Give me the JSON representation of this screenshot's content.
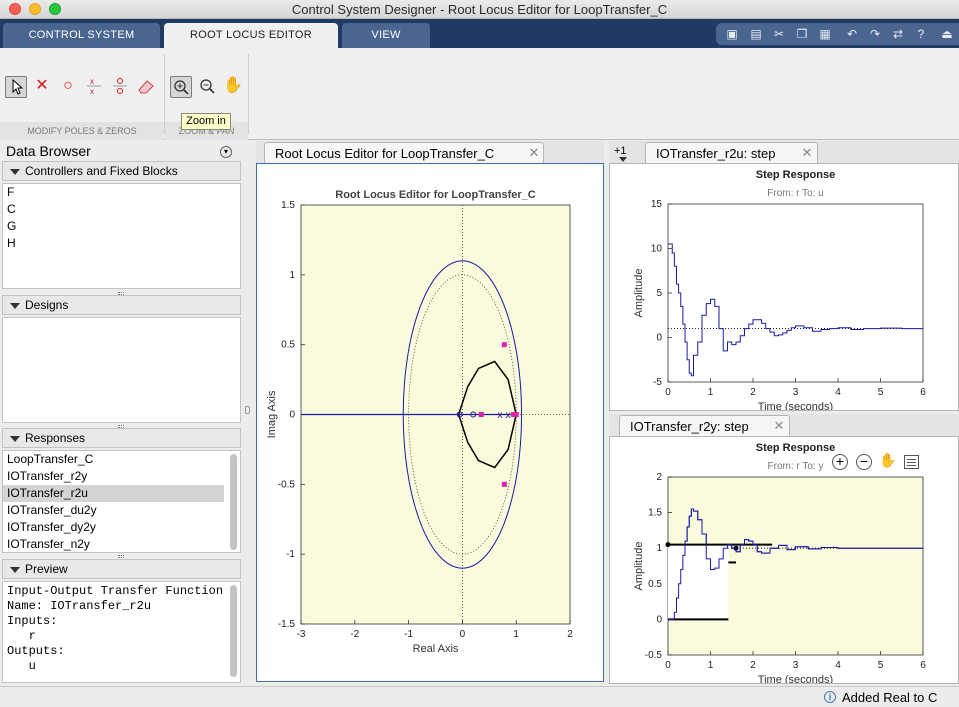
{
  "window": {
    "title": "Control System Designer - Root Locus Editor for LoopTransfer_C"
  },
  "tabs": {
    "control_system": "CONTROL SYSTEM",
    "root_locus_editor": "ROOT LOCUS EDITOR",
    "view": "VIEW",
    "active": "ROOT LOCUS EDITOR"
  },
  "ribbon": {
    "modify_label": "MODIFY POLES & ZEROS",
    "zoom_label": "ZOOM & PAN",
    "tooltip": "Zoom in",
    "tools": [
      "select-arrow-icon",
      "add-pole-icon",
      "add-zero-icon",
      "add-complex-pole-icon",
      "add-complex-zero-icon",
      "eraser-icon",
      "zoom-in-icon",
      "zoom-out-icon",
      "pan-hand-icon"
    ]
  },
  "data_browser": {
    "title": "Data Browser",
    "controllers": {
      "header": "Controllers and Fixed Blocks",
      "items": [
        "F",
        "C",
        "G",
        "H"
      ]
    },
    "designs": {
      "header": "Designs",
      "items": []
    },
    "responses": {
      "header": "Responses",
      "items": [
        "LoopTransfer_C",
        "IOTransfer_r2y",
        "IOTransfer_r2u",
        "IOTransfer_du2y",
        "IOTransfer_dy2y",
        "IOTransfer_n2y"
      ],
      "selected": "IOTransfer_r2u"
    },
    "preview": {
      "header": "Preview",
      "lines": [
        "Input-Output Transfer Function",
        "Name: IOTransfer_r2u",
        "Inputs:",
        "   r",
        "Outputs:",
        "   u"
      ]
    }
  },
  "root_locus": {
    "tab_label": "Root Locus Editor for LoopTransfer_C",
    "chart_data": {
      "type": "scatter",
      "title": "Root Locus Editor for LoopTransfer_C",
      "xlabel": "Real Axis",
      "ylabel": "Imag Axis",
      "xlim": [
        -3,
        2
      ],
      "ylim": [
        -1.5,
        1.5
      ],
      "xticks": [
        "-3",
        "-2",
        "-1",
        "0",
        "1",
        "2"
      ],
      "yticks": [
        "1.5",
        "1",
        "0.5",
        "0",
        "-0.5",
        "-1",
        "-1.5"
      ],
      "background": "#fafadc",
      "unit_circle_radius": 1.1,
      "closed_loop_poles": [
        [
          0.78,
          0.5
        ],
        [
          0.78,
          -0.5
        ],
        [
          0.35,
          0
        ],
        [
          0.95,
          0
        ],
        [
          1.0,
          0
        ]
      ],
      "open_loop_poles": [
        [
          0.7,
          0
        ],
        [
          0.85,
          0
        ]
      ],
      "open_loop_zeros": [
        [
          0.2,
          0
        ],
        [
          -0.05,
          0
        ]
      ]
    }
  },
  "r2u": {
    "tab_label": "IOTransfer_r2u: step",
    "plus_label": "+1",
    "chart_data": {
      "type": "line",
      "title": "Step Response",
      "subtitle": "From: r  To: u",
      "xlabel": "Time (seconds)",
      "ylabel": "Amplitude",
      "xlim": [
        0,
        6
      ],
      "ylim": [
        -5,
        15
      ],
      "xticks": [
        "0",
        "1",
        "2",
        "3",
        "4",
        "5",
        "6"
      ],
      "yticks": [
        "15",
        "10",
        "5",
        "0",
        "-5"
      ],
      "x": [
        0,
        0.1,
        0.15,
        0.2,
        0.25,
        0.3,
        0.35,
        0.4,
        0.45,
        0.5,
        0.55,
        0.6,
        0.7,
        0.8,
        0.9,
        1.0,
        1.1,
        1.2,
        1.3,
        1.4,
        1.5,
        1.6,
        1.7,
        1.8,
        1.9,
        2.0,
        2.1,
        2.2,
        2.3,
        2.4,
        2.5,
        2.6,
        2.7,
        2.8,
        2.9,
        3.0,
        3.2,
        3.4,
        3.6,
        3.8,
        4.0,
        4.3,
        4.6,
        5.0,
        5.5,
        6.0
      ],
      "y": [
        10.5,
        9.5,
        8,
        6,
        5,
        3.5,
        1.5,
        -0.5,
        -2.5,
        -4,
        -4.3,
        -2,
        -0.5,
        2.5,
        3.8,
        4.3,
        3.5,
        1,
        -1.5,
        -0.5,
        -0.8,
        -0.5,
        0.2,
        1,
        1.5,
        2,
        2,
        1.6,
        1,
        0.6,
        0.2,
        0.3,
        0.5,
        0.8,
        1.1,
        1.3,
        1.1,
        0.7,
        0.9,
        1.0,
        1.1,
        0.9,
        1.0,
        1.05,
        1.0,
        1.0
      ],
      "final_value": 1
    }
  },
  "r2y": {
    "tab_label": "IOTransfer_r2y: step",
    "chart_data": {
      "type": "line",
      "title": "Step Response",
      "subtitle": "From: r  To: y",
      "xlabel": "Time (seconds)",
      "ylabel": "Amplitude",
      "xlim": [
        0,
        6
      ],
      "ylim": [
        -0.5,
        2
      ],
      "xticks": [
        "0",
        "1",
        "2",
        "3",
        "4",
        "5",
        "6"
      ],
      "yticks": [
        "2",
        "1.5",
        "1",
        "0.5",
        "0",
        "-0.5"
      ],
      "background": "#fafadc",
      "x": [
        0,
        0.1,
        0.15,
        0.2,
        0.25,
        0.3,
        0.35,
        0.4,
        0.45,
        0.5,
        0.55,
        0.6,
        0.7,
        0.8,
        0.9,
        1.0,
        1.1,
        1.2,
        1.3,
        1.4,
        1.5,
        1.6,
        1.7,
        1.8,
        1.9,
        2.0,
        2.1,
        2.2,
        2.4,
        2.6,
        2.8,
        3.0,
        3.3,
        3.6,
        4.0,
        4.5,
        5.0,
        6.0
      ],
      "y": [
        0,
        0,
        0.1,
        0.3,
        0.5,
        0.7,
        0.9,
        1.1,
        1.3,
        1.45,
        1.55,
        1.52,
        1.4,
        1.2,
        0.85,
        0.7,
        0.72,
        0.85,
        1.0,
        1.05,
        1.0,
        0.95,
        1.05,
        1.12,
        1.1,
        1.05,
        0.95,
        0.93,
        1.0,
        1.04,
        0.98,
        1.02,
        0.99,
        1.01,
        1.0,
        1.0,
        1.0,
        1.0
      ],
      "final_value": 1
    }
  },
  "status": {
    "message": "Added Real to C"
  }
}
